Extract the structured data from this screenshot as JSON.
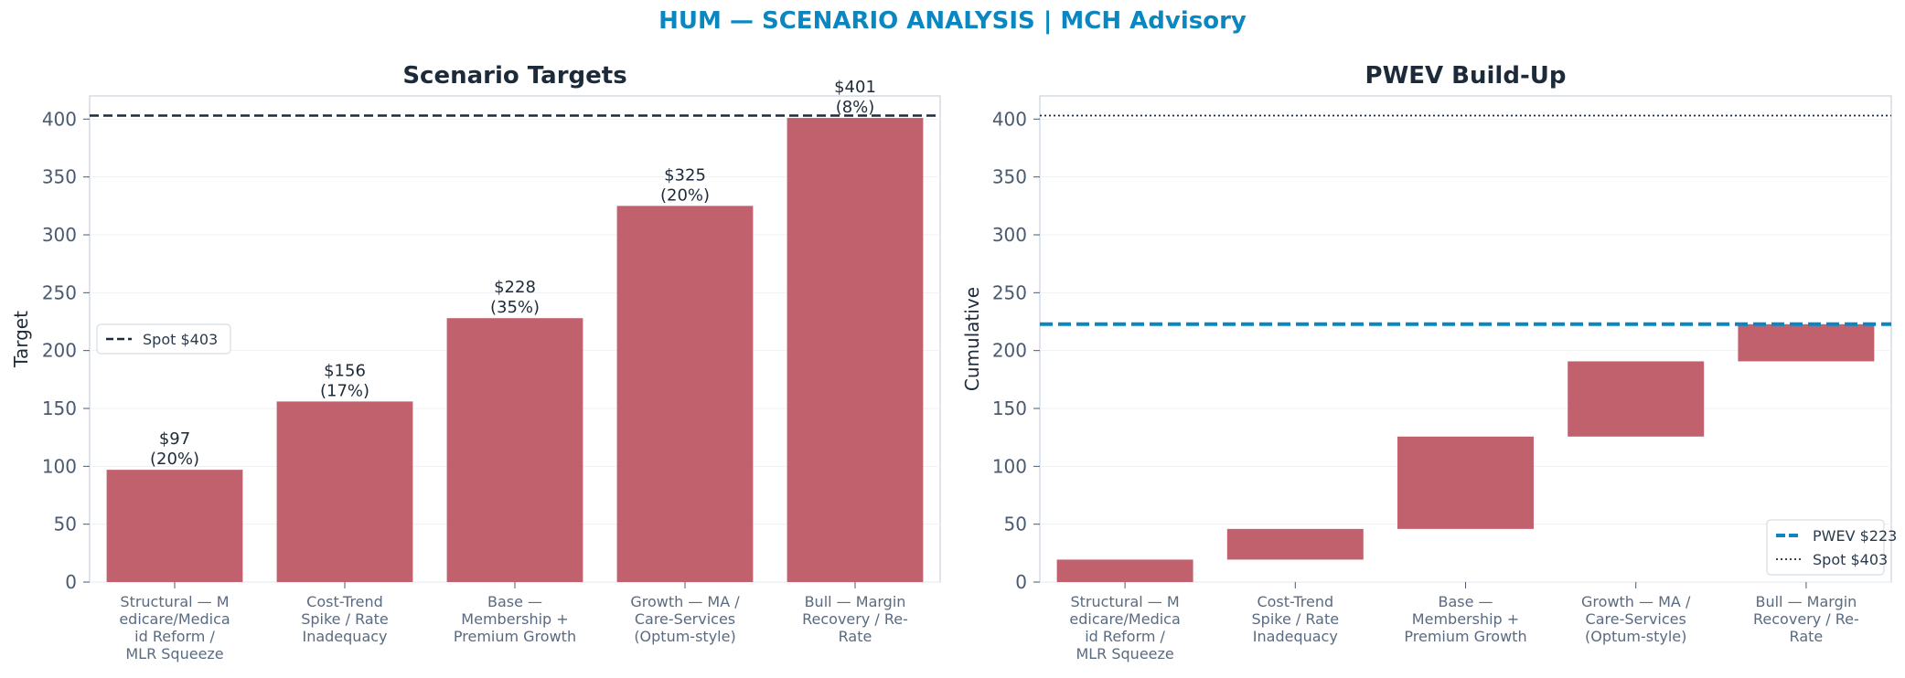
{
  "title": "HUM — SCENARIO ANALYSIS | MCH Advisory",
  "colors": {
    "bar": "#c1616d",
    "spot": "#1d2a3a",
    "pwev": "#0a87c1",
    "title": "#0a87c1"
  },
  "chart_data": [
    {
      "type": "bar",
      "title": "Scenario Targets",
      "xlabel": "",
      "ylabel": "Target",
      "ylim": [
        0,
        420
      ],
      "yticks": [
        "0",
        "50",
        "100",
        "150",
        "200",
        "250",
        "300",
        "350",
        "400"
      ],
      "categories": [
        [
          "Structural — M",
          "edicare/Medica",
          "id Reform /",
          "MLR Squeeze"
        ],
        [
          "Cost-Trend",
          "Spike / Rate",
          "Inadequacy"
        ],
        [
          "Base —",
          "Membership +",
          "Premium Growth"
        ],
        [
          "Growth — MA /",
          "Care-Services",
          "(Optum-style)"
        ],
        [
          "Bull — Margin",
          "Recovery / Re-",
          "Rate"
        ]
      ],
      "values": [
        97,
        156,
        228,
        325,
        401
      ],
      "data_labels": [
        [
          "$97",
          "(20%)"
        ],
        [
          "$156",
          "(17%)"
        ],
        [
          "$228",
          "(35%)"
        ],
        [
          "$325",
          "(20%)"
        ],
        [
          "$401",
          "(8%)"
        ]
      ],
      "reference_line": {
        "value": 403,
        "style": "dashed",
        "legend": "Spot $403"
      },
      "legend_placement": "center-left",
      "grid": true
    },
    {
      "type": "bar",
      "title": "PWEV Build-Up",
      "xlabel": "",
      "ylabel": "Cumulative",
      "ylim": [
        0,
        420
      ],
      "yticks": [
        "0",
        "50",
        "100",
        "150",
        "200",
        "250",
        "300",
        "350",
        "400"
      ],
      "categories": [
        [
          "Structural — M",
          "edicare/Medica",
          "id Reform /",
          "MLR Squeeze"
        ],
        [
          "Cost-Trend",
          "Spike / Rate",
          "Inadequacy"
        ],
        [
          "Base —",
          "Membership +",
          "Premium Growth"
        ],
        [
          "Growth — MA /",
          "Care-Services",
          "(Optum-style)"
        ],
        [
          "Bull — Margin",
          "Recovery / Re-",
          "Rate"
        ]
      ],
      "ranges": [
        [
          0,
          19.4
        ],
        [
          19.4,
          45.9
        ],
        [
          45.9,
          125.7
        ],
        [
          125.7,
          190.7
        ],
        [
          190.7,
          222.8
        ]
      ],
      "reference_lines": [
        {
          "value": 222.8,
          "style": "dashed",
          "legend": "PWEV $223"
        },
        {
          "value": 403,
          "style": "dotted",
          "legend": "Spot $403"
        }
      ],
      "legend_placement": "lower-right",
      "grid": true
    }
  ]
}
